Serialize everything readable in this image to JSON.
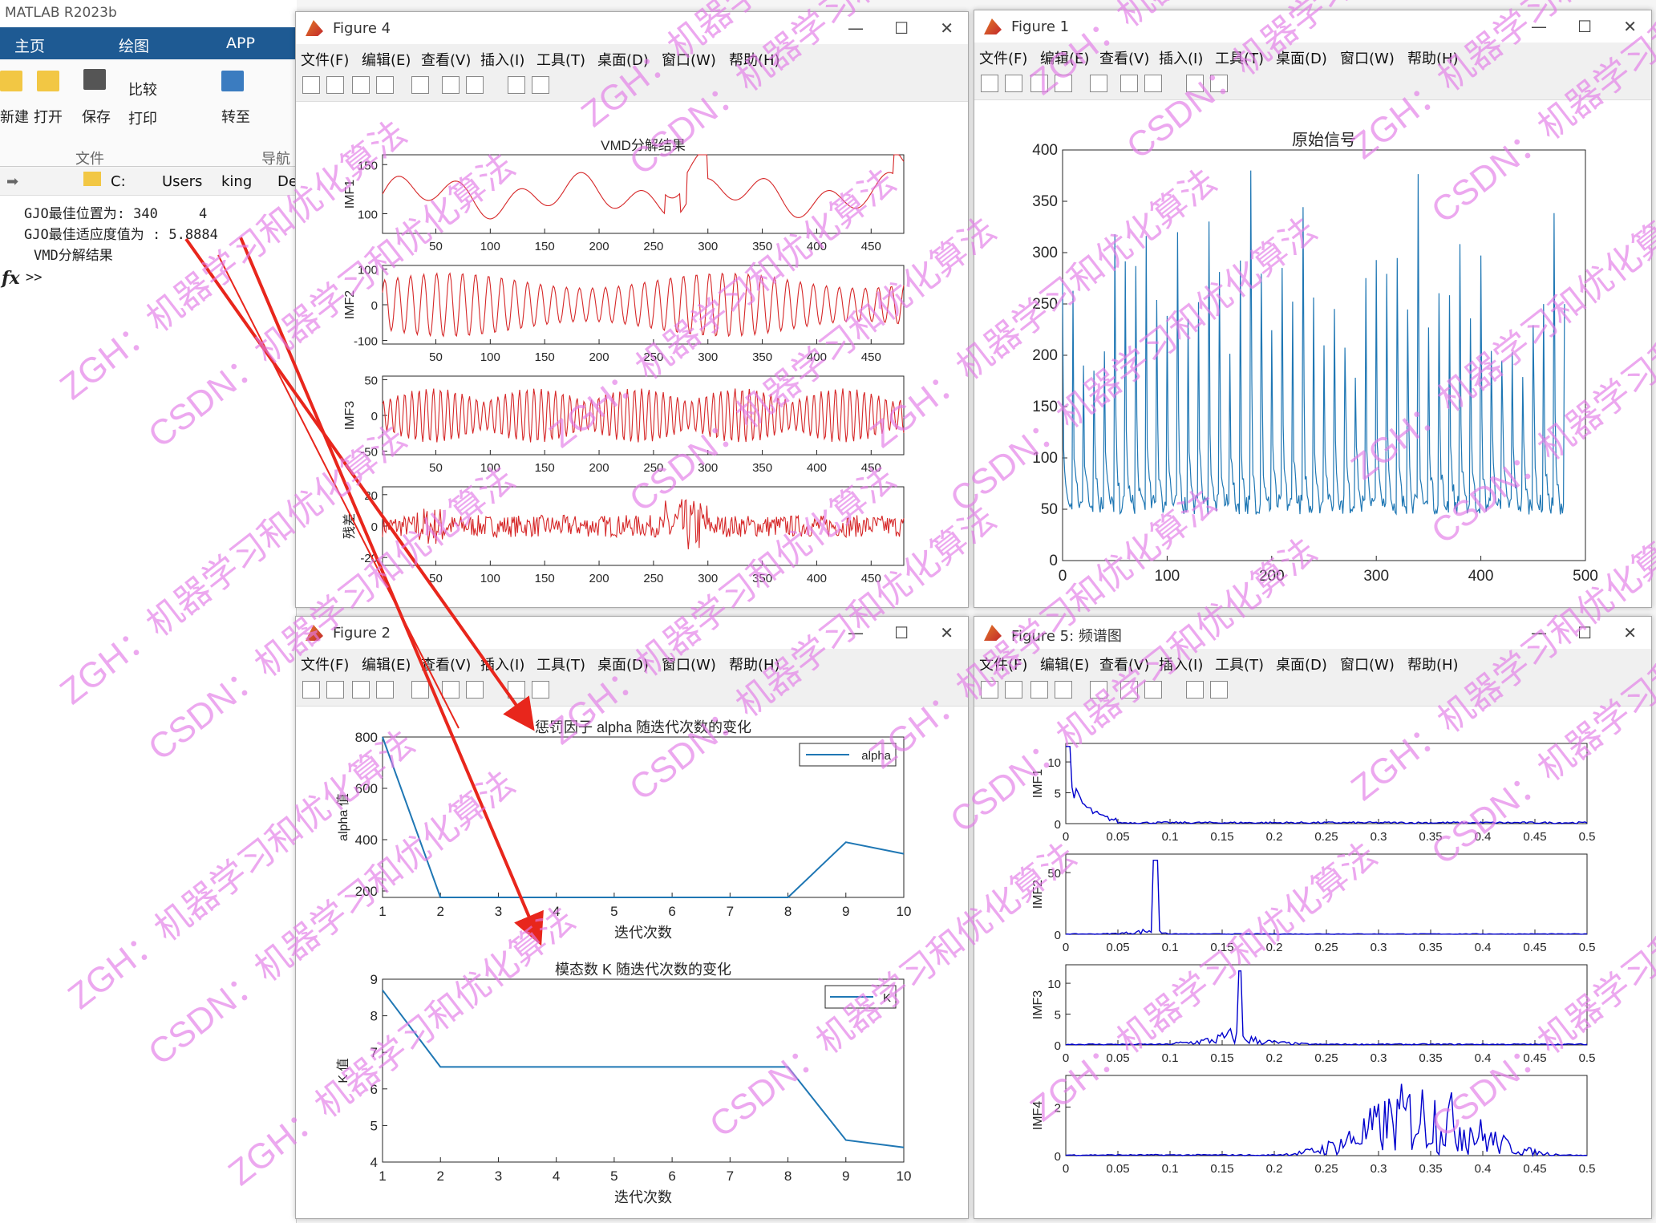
{
  "matlab": {
    "title": "MATLAB R2023b",
    "tabs": [
      "主页",
      "绘图",
      "APP"
    ],
    "ribbon": {
      "new": "新建",
      "open": "打开",
      "save": "保存",
      "compare": "比较",
      "print": "打印",
      "goto": "转至",
      "file_group": "文件",
      "nav_group": "导航"
    },
    "path": [
      "C:",
      "Users",
      "king",
      "De"
    ],
    "console": [
      "GJO最佳位置为: 340     4",
      "GJO最佳适应度值为 : 5.8884",
      "VMD分解结果",
      ">>"
    ],
    "prompt": "fx"
  },
  "menu": [
    "文件(F)",
    "编辑(E)",
    "查看(V)",
    "插入(I)",
    "工具(T)",
    "桌面(D)",
    "窗口(W)",
    "帮助(H)"
  ],
  "fig4": {
    "title": "Figure 4",
    "main_title": "VMD分解结果",
    "ylabels": [
      "IMF1",
      "IMF2",
      "IMF3",
      "残差"
    ]
  },
  "fig1": {
    "title": "Figure 1",
    "plot_title": "原始信号"
  },
  "fig2": {
    "title": "Figure 2",
    "t1": "惩罚因子 alpha 随迭代次数的变化",
    "t2": "模态数 K 随迭代次数的变化",
    "xlabel": "迭代次数",
    "yl1": "alpha 值",
    "yl2": "K 值",
    "leg1": "alpha",
    "leg2": "K"
  },
  "fig5": {
    "title": "Figure 5: 频谱图",
    "ylabels": [
      "IMF1",
      "IMF2",
      "IMF3",
      "IMF4"
    ]
  },
  "watermarks": [
    "ZGH：机器学习和优化算法",
    "CSDN：机器学习和优化算法"
  ],
  "chart_data": [
    {
      "type": "line",
      "title": "VMD分解结果",
      "ylabel": "IMF1",
      "xticks": [
        50,
        100,
        150,
        200,
        250,
        300,
        350,
        400,
        450
      ],
      "xlim": [
        1,
        480
      ],
      "yticks": [
        100,
        150
      ],
      "ylim": [
        80,
        160
      ]
    },
    {
      "type": "line",
      "ylabel": "IMF2",
      "xticks": [
        50,
        100,
        150,
        200,
        250,
        300,
        350,
        400,
        450
      ],
      "xlim": [
        1,
        480
      ],
      "yticks": [
        -100,
        0,
        100
      ],
      "ylim": [
        -110,
        110
      ]
    },
    {
      "type": "line",
      "ylabel": "IMF3",
      "xticks": [
        50,
        100,
        150,
        200,
        250,
        300,
        350,
        400,
        450
      ],
      "xlim": [
        1,
        480
      ],
      "yticks": [
        -50,
        0,
        50
      ],
      "ylim": [
        -55,
        55
      ]
    },
    {
      "type": "line",
      "ylabel": "残差",
      "xticks": [
        50,
        100,
        150,
        200,
        250,
        300,
        350,
        400,
        450
      ],
      "xlim": [
        1,
        480
      ],
      "yticks": [
        -20,
        0,
        20
      ],
      "ylim": [
        -25,
        25
      ]
    },
    {
      "type": "line",
      "title": "原始信号",
      "xticks": [
        0,
        100,
        200,
        300,
        400,
        500
      ],
      "yticks": [
        0,
        50,
        100,
        150,
        200,
        250,
        300,
        350,
        400
      ],
      "xlim": [
        0,
        500
      ],
      "ylim": [
        0,
        400
      ]
    },
    {
      "type": "line",
      "title": "惩罚因子 alpha 随迭代次数的变化",
      "xlabel": "迭代次数",
      "ylabel": "alpha 值",
      "x": [
        1,
        2,
        3,
        4,
        5,
        6,
        7,
        8,
        9,
        10
      ],
      "series": [
        {
          "name": "alpha",
          "values": [
            800,
            175,
            175,
            175,
            175,
            175,
            175,
            175,
            390,
            345
          ]
        }
      ],
      "xticks": [
        1,
        2,
        3,
        4,
        5,
        6,
        7,
        8,
        9,
        10
      ],
      "yticks": [
        200,
        400,
        600,
        800
      ],
      "ylim": [
        175,
        800
      ]
    },
    {
      "type": "line",
      "title": "模态数 K 随迭代次数的变化",
      "xlabel": "迭代次数",
      "ylabel": "K 值",
      "x": [
        1,
        2,
        3,
        4,
        5,
        6,
        7,
        8,
        9,
        10
      ],
      "series": [
        {
          "name": "K",
          "values": [
            8.7,
            6.6,
            6.6,
            6.6,
            6.6,
            6.6,
            6.6,
            6.6,
            4.6,
            4.4
          ]
        }
      ],
      "xticks": [
        1,
        2,
        3,
        4,
        5,
        6,
        7,
        8,
        9,
        10
      ],
      "yticks": [
        4,
        5,
        6,
        7,
        8,
        9
      ],
      "ylim": [
        4,
        9
      ]
    },
    {
      "type": "line",
      "ylabel": "IMF1",
      "xticks": [
        0,
        0.05,
        0.1,
        0.15,
        0.2,
        0.25,
        0.3,
        0.35,
        0.4,
        0.45,
        0.5
      ],
      "yticks": [
        0,
        5,
        10
      ],
      "xlim": [
        0,
        0.5
      ],
      "ylim": [
        0,
        13
      ]
    },
    {
      "type": "line",
      "ylabel": "IMF2",
      "xticks": [
        0,
        0.05,
        0.1,
        0.15,
        0.2,
        0.25,
        0.3,
        0.35,
        0.4,
        0.45,
        0.5
      ],
      "yticks": [
        0,
        50
      ],
      "xlim": [
        0,
        0.5
      ],
      "ylim": [
        0,
        65
      ]
    },
    {
      "type": "line",
      "ylabel": "IMF3",
      "xticks": [
        0,
        0.05,
        0.1,
        0.15,
        0.2,
        0.25,
        0.3,
        0.35,
        0.4,
        0.45,
        0.5
      ],
      "yticks": [
        0,
        5,
        10
      ],
      "xlim": [
        0,
        0.5
      ],
      "ylim": [
        0,
        13
      ]
    },
    {
      "type": "line",
      "ylabel": "IMF4",
      "xticks": [
        0,
        0.05,
        0.1,
        0.15,
        0.2,
        0.25,
        0.3,
        0.35,
        0.4,
        0.45,
        0.5
      ],
      "yticks": [
        0,
        2
      ],
      "xlim": [
        0,
        0.5
      ],
      "ylim": [
        0,
        3.3
      ]
    }
  ]
}
